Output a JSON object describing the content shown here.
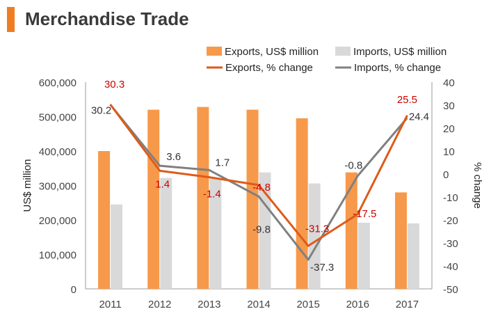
{
  "header": {
    "title": "Merchandise Trade"
  },
  "colors": {
    "accent": "#F07C22",
    "exports_bar": "#F7994A",
    "imports_bar": "#D9D9D9",
    "exports_line": "#DE5A18",
    "imports_line": "#808080",
    "exports_label": "#CC0000",
    "imports_label": "#333333",
    "axis_text": "#444444"
  },
  "chart_data": {
    "type": "bar",
    "title": "",
    "categories": [
      "2011",
      "2012",
      "2013",
      "2014",
      "2015",
      "2016",
      "2017"
    ],
    "ylabel": "US$ million",
    "y2label": "% change",
    "ylim": [
      0,
      600000
    ],
    "y_ticks": [
      "0",
      "100,000",
      "200,000",
      "300,000",
      "400,000",
      "500,000",
      "600,000"
    ],
    "y2lim": [
      -50,
      40
    ],
    "y2_ticks": [
      "-50",
      "-40",
      "-30",
      "-20",
      "-10",
      "0",
      "10",
      "20",
      "30",
      "40"
    ],
    "grid": false,
    "legend_position": "top",
    "series": [
      {
        "name": "Exports, US$ million",
        "kind": "bar",
        "axis": "left",
        "values": [
          400000,
          520000,
          528000,
          520000,
          495000,
          338000,
          280000
        ]
      },
      {
        "name": "Imports, US$ million",
        "kind": "bar",
        "axis": "left",
        "values": [
          245000,
          322000,
          320000,
          338000,
          306000,
          192000,
          190000
        ]
      },
      {
        "name": "Exports, % change",
        "kind": "line",
        "axis": "right",
        "values": [
          30.3,
          1.4,
          -1.4,
          -4.8,
          -31.3,
          -17.5,
          25.5
        ],
        "labels": [
          "30.3",
          "1.4",
          "-1.4",
          "-4.8",
          "-31.3",
          "-17.5",
          "25.5"
        ]
      },
      {
        "name": "Imports, % change",
        "kind": "line",
        "axis": "right",
        "values": [
          30.2,
          3.6,
          1.7,
          -9.8,
          -37.3,
          -0.8,
          24.4
        ],
        "labels": [
          "30.2",
          "3.6",
          "1.7",
          "-9.8",
          "-37.3",
          "-0.8",
          "24.4"
        ]
      }
    ]
  }
}
